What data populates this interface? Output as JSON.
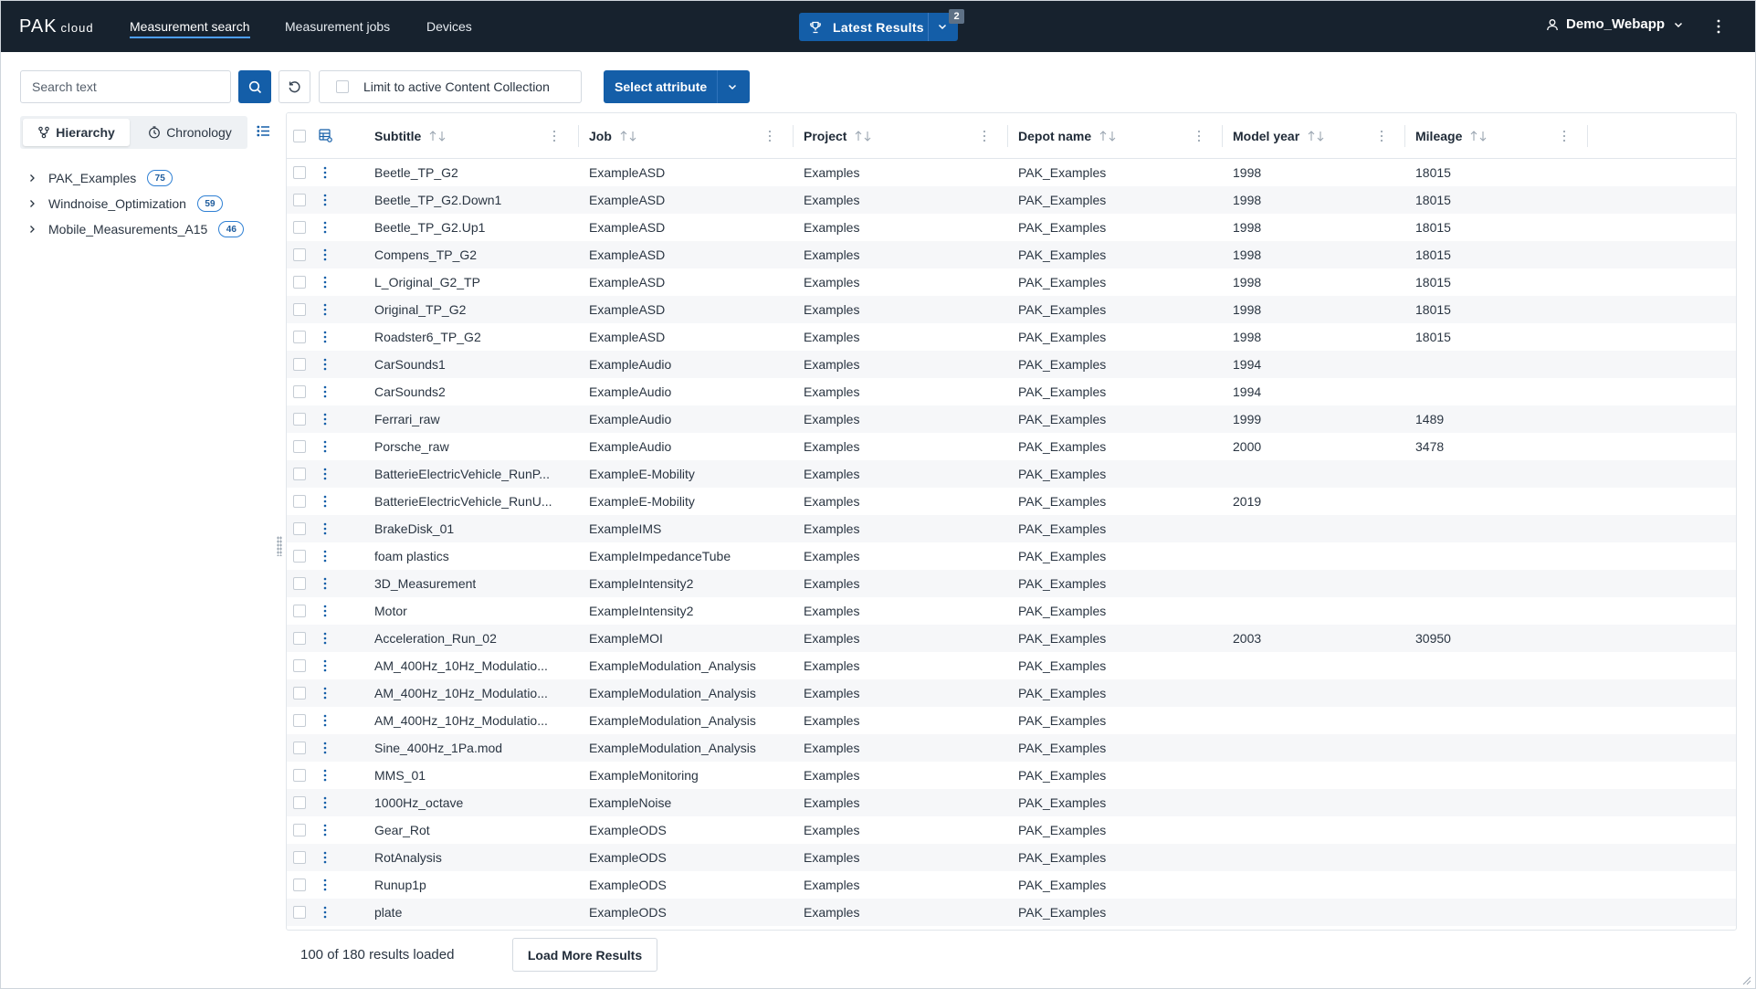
{
  "app": {
    "logo_main": "PAK",
    "logo_sub": "cloud"
  },
  "nav": [
    {
      "label": "Measurement search",
      "active": true
    },
    {
      "label": "Measurement jobs",
      "active": false
    },
    {
      "label": "Devices",
      "active": false
    }
  ],
  "latest": {
    "label": "Latest Results",
    "count": "2",
    "icon": "trophy-icon"
  },
  "user": {
    "name": "Demo_Webapp",
    "icon": "user-icon"
  },
  "toolbar": {
    "search_placeholder": "Search text",
    "limit_label": "Limit to active Content Collection",
    "limit_checked": false,
    "select_attribute_label": "Select attribute"
  },
  "left_panel": {
    "tabs": [
      {
        "label": "Hierarchy",
        "icon": "hierarchy-icon",
        "active": true
      },
      {
        "label": "Chronology",
        "icon": "clock-icon",
        "active": false
      }
    ],
    "tree": [
      {
        "label": "PAK_Examples",
        "count": "75"
      },
      {
        "label": "Windnoise_Optimization",
        "count": "59"
      },
      {
        "label": "Mobile_Measurements_A15",
        "count": "46"
      }
    ]
  },
  "table": {
    "columns": [
      "Subtitle",
      "Job",
      "Project",
      "Depot name",
      "Model year",
      "Mileage"
    ],
    "rows": [
      [
        "Beetle_TP_G2",
        "ExampleASD",
        "Examples",
        "PAK_Examples",
        "1998",
        "18015"
      ],
      [
        "Beetle_TP_G2.Down1",
        "ExampleASD",
        "Examples",
        "PAK_Examples",
        "1998",
        "18015"
      ],
      [
        "Beetle_TP_G2.Up1",
        "ExampleASD",
        "Examples",
        "PAK_Examples",
        "1998",
        "18015"
      ],
      [
        "Compens_TP_G2",
        "ExampleASD",
        "Examples",
        "PAK_Examples",
        "1998",
        "18015"
      ],
      [
        "L_Original_G2_TP",
        "ExampleASD",
        "Examples",
        "PAK_Examples",
        "1998",
        "18015"
      ],
      [
        "Original_TP_G2",
        "ExampleASD",
        "Examples",
        "PAK_Examples",
        "1998",
        "18015"
      ],
      [
        "Roadster6_TP_G2",
        "ExampleASD",
        "Examples",
        "PAK_Examples",
        "1998",
        "18015"
      ],
      [
        "CarSounds1",
        "ExampleAudio",
        "Examples",
        "PAK_Examples",
        "1994",
        ""
      ],
      [
        "CarSounds2",
        "ExampleAudio",
        "Examples",
        "PAK_Examples",
        "1994",
        ""
      ],
      [
        "Ferrari_raw",
        "ExampleAudio",
        "Examples",
        "PAK_Examples",
        "1999",
        "1489"
      ],
      [
        "Porsche_raw",
        "ExampleAudio",
        "Examples",
        "PAK_Examples",
        "2000",
        "3478"
      ],
      [
        "BatterieElectricVehicle_RunP...",
        "ExampleE-Mobility",
        "Examples",
        "PAK_Examples",
        "",
        ""
      ],
      [
        "BatterieElectricVehicle_RunU...",
        "ExampleE-Mobility",
        "Examples",
        "PAK_Examples",
        "2019",
        ""
      ],
      [
        "BrakeDisk_01",
        "ExampleIMS",
        "Examples",
        "PAK_Examples",
        "",
        ""
      ],
      [
        "foam plastics",
        "ExampleImpedanceTube",
        "Examples",
        "PAK_Examples",
        "",
        ""
      ],
      [
        "3D_Measurement",
        "ExampleIntensity2",
        "Examples",
        "PAK_Examples",
        "",
        ""
      ],
      [
        "Motor",
        "ExampleIntensity2",
        "Examples",
        "PAK_Examples",
        "",
        ""
      ],
      [
        "Acceleration_Run_02",
        "ExampleMOI",
        "Examples",
        "PAK_Examples",
        "2003",
        "30950"
      ],
      [
        "AM_400Hz_10Hz_Modulatio...",
        "ExampleModulation_Analysis",
        "Examples",
        "PAK_Examples",
        "",
        ""
      ],
      [
        "AM_400Hz_10Hz_Modulatio...",
        "ExampleModulation_Analysis",
        "Examples",
        "PAK_Examples",
        "",
        ""
      ],
      [
        "AM_400Hz_10Hz_Modulatio...",
        "ExampleModulation_Analysis",
        "Examples",
        "PAK_Examples",
        "",
        ""
      ],
      [
        "Sine_400Hz_1Pa.mod",
        "ExampleModulation_Analysis",
        "Examples",
        "PAK_Examples",
        "",
        ""
      ],
      [
        "MMS_01",
        "ExampleMonitoring",
        "Examples",
        "PAK_Examples",
        "",
        ""
      ],
      [
        "1000Hz_octave",
        "ExampleNoise",
        "Examples",
        "PAK_Examples",
        "",
        ""
      ],
      [
        "Gear_Rot",
        "ExampleODS",
        "Examples",
        "PAK_Examples",
        "",
        ""
      ],
      [
        "RotAnalysis",
        "ExampleODS",
        "Examples",
        "PAK_Examples",
        "",
        ""
      ],
      [
        "Runup1p",
        "ExampleODS",
        "Examples",
        "PAK_Examples",
        "",
        ""
      ],
      [
        "plate",
        "ExampleODS",
        "Examples",
        "PAK_Examples",
        "",
        ""
      ]
    ]
  },
  "footer": {
    "status": "100 of 180 results loaded",
    "load_more_label": "Load More Results"
  },
  "colors": {
    "topbar": "#17222e",
    "primary": "#145ea8",
    "badge_border": "#2f80d4",
    "row_stripe": "#f6f7f9"
  }
}
